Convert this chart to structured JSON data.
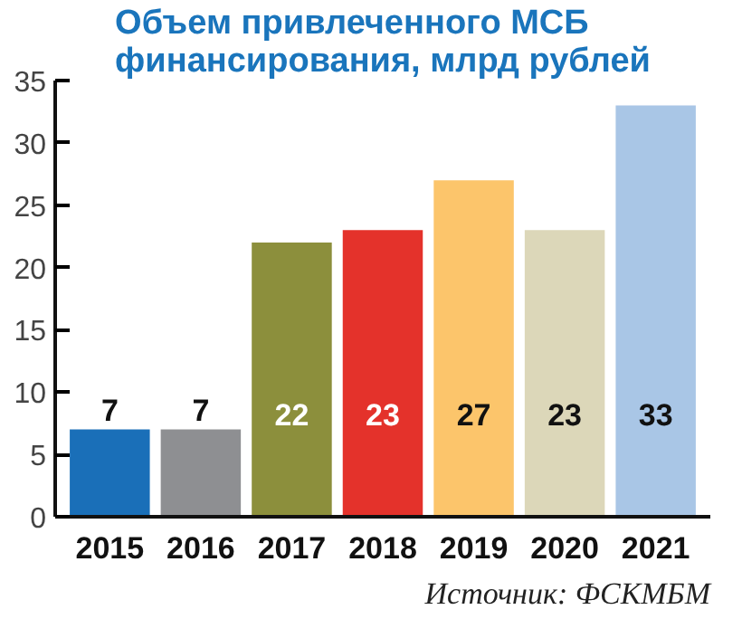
{
  "chart_data": {
    "type": "bar",
    "title": "Объем привлеченного МСБ\nфинансирования, млрд рублей",
    "categories": [
      "2015",
      "2016",
      "2017",
      "2018",
      "2019",
      "2020",
      "2021"
    ],
    "values": [
      7,
      7,
      22,
      23,
      27,
      23,
      33
    ],
    "colors": [
      "#1a6fb8",
      "#8e8f92",
      "#8c8f3c",
      "#e4322b",
      "#fcc56b",
      "#dcd7b9",
      "#a9c6e6"
    ],
    "ylim": [
      0,
      35
    ],
    "yticks": [
      0,
      5,
      10,
      15,
      20,
      25,
      30,
      35
    ],
    "grid": false,
    "data_labels": true,
    "annotations": [
      "Источник: ФСКМБМ"
    ]
  }
}
